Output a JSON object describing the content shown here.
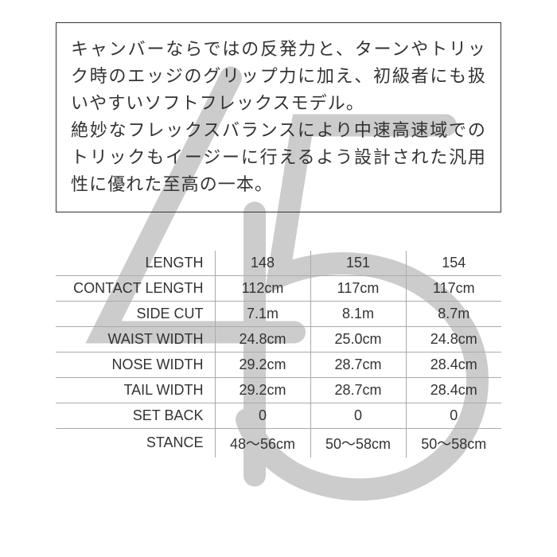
{
  "background_logo": {
    "stroke_color": "#cccccc",
    "stroke_width": 28,
    "size": 620
  },
  "description": {
    "text": "キャンバーならではの反発力と、ターンやトリック時のエッジのグリップ力に加え、初級者にも扱いやすいソフトフレックスモデル。\n絶妙なフレックスバランスにより中速高速域でのトリックもイージーに行えるよう設計された汎用性に優れた至高の一本。",
    "border_color": "#333333",
    "font_size": 22,
    "text_color": "#333333"
  },
  "spec_table": {
    "label_column_width": 200,
    "value_column_width": 120,
    "font_size": 18,
    "border_color": "#aaaaaa",
    "text_color": "#333333",
    "rows": [
      {
        "label": "LENGTH",
        "values": [
          "148",
          "151",
          "154"
        ]
      },
      {
        "label": "CONTACT LENGTH",
        "values": [
          "112cm",
          "117cm",
          "117cm"
        ]
      },
      {
        "label": "SIDE CUT",
        "values": [
          "7.1m",
          "8.1m",
          "8.7m"
        ]
      },
      {
        "label": "WAIST WIDTH",
        "values": [
          "24.8cm",
          "25.0cm",
          "24.8cm"
        ]
      },
      {
        "label": "NOSE WIDTH",
        "values": [
          "29.2cm",
          "28.7cm",
          "28.4cm"
        ]
      },
      {
        "label": "TAIL WIDTH",
        "values": [
          "29.2cm",
          "28.7cm",
          "28.4cm"
        ]
      },
      {
        "label": "SET BACK",
        "values": [
          "0",
          "0",
          "0"
        ]
      },
      {
        "label": "STANCE",
        "values": [
          "48～56cm",
          "50～58cm",
          "50～58cm"
        ]
      }
    ]
  }
}
